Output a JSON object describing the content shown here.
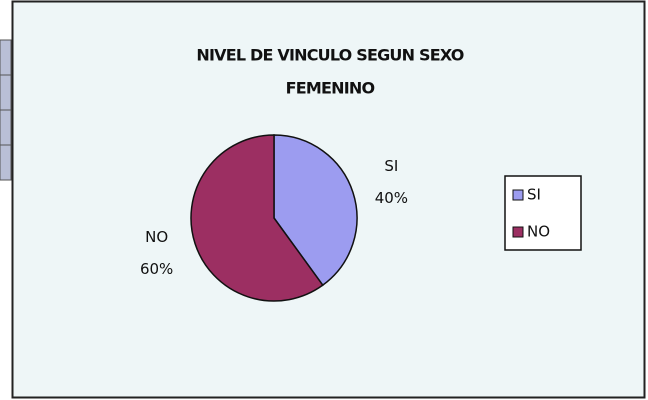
{
  "chart_data": {
    "type": "pie",
    "title": "NIVEL DE VINCULO SEGUN SEXO",
    "subtitle": "FEMENINO",
    "categories": [
      "SI",
      "NO"
    ],
    "values": [
      40,
      60
    ],
    "value_labels": [
      "40%",
      "60%"
    ],
    "colors": [
      "#9c9cf0",
      "#9c2f62"
    ],
    "legend": "right"
  }
}
